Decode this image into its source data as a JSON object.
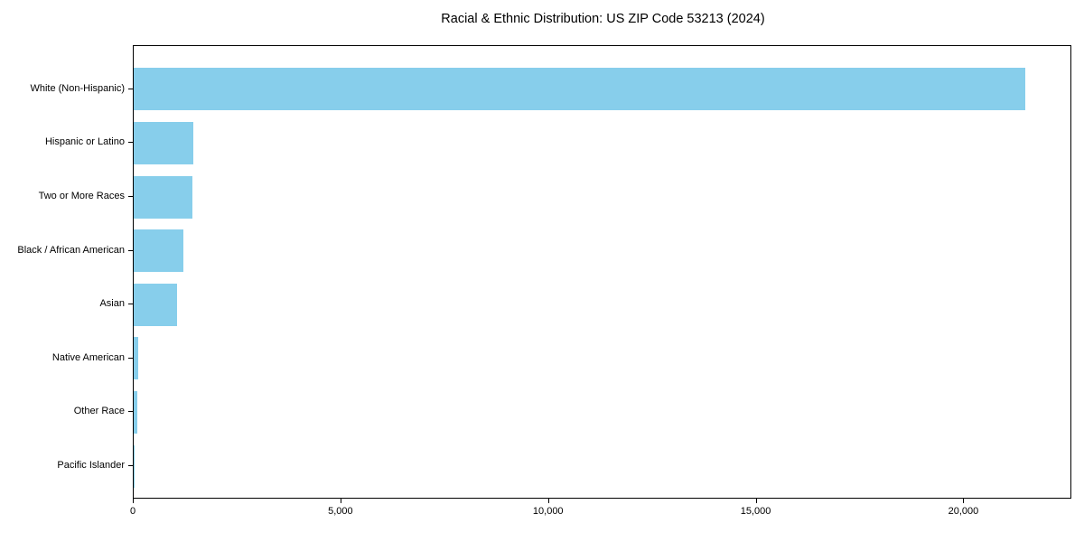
{
  "chart_data": {
    "type": "bar",
    "orientation": "horizontal",
    "title": "Racial & Ethnic Distribution: US ZIP Code 53213 (2024)",
    "categories": [
      "White (Non-Hispanic)",
      "Hispanic or Latino",
      "Two or More Races",
      "Black / African American",
      "Asian",
      "Native American",
      "Other Race",
      "Pacific Islander"
    ],
    "values": [
      21500,
      1430,
      1410,
      1200,
      1050,
      110,
      85,
      10
    ],
    "xlabel": "",
    "ylabel": "",
    "xlim": [
      0,
      22600
    ],
    "xticks": [
      0,
      5000,
      10000,
      15000,
      20000
    ],
    "xtick_labels": [
      "0",
      "5,000",
      "10,000",
      "15,000",
      "20,000"
    ],
    "bar_color": "#87CEEB",
    "axis_color": "#000000",
    "text_color": "#000000",
    "background_color": "#ffffff",
    "grid": false,
    "legend": null,
    "value_labels_shown": false
  }
}
